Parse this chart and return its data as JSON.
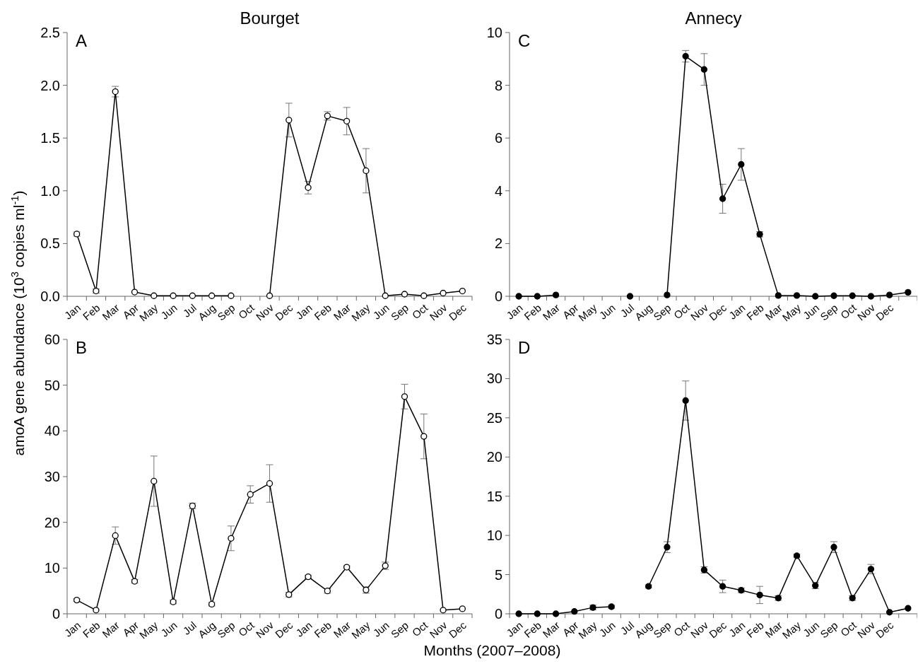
{
  "chart_data": [
    {
      "type": "line",
      "title": "Bourget",
      "ylabel": "amoA gene abundance (10$^{3}$ copies ml$^{-1}$)",
      "annotations": [
        "A"
      ],
      "categories": [
        "Jan",
        "Feb",
        "Mar",
        "Apr",
        "May",
        "Jun",
        "Jul",
        "Aug",
        "Sep",
        "Oct",
        "Nov",
        "Dec",
        "Jan",
        "Feb",
        "Mar",
        "May",
        "Jun",
        "Sep",
        "Oct",
        "Nov",
        "Dec"
      ],
      "ylim": [
        0,
        2.5
      ],
      "yticks": [
        {
          "value": 0,
          "label": "0.0"
        },
        {
          "value": 0.5,
          "label": "0.5"
        },
        {
          "value": 1,
          "label": "1.0"
        },
        {
          "value": 1.5,
          "label": "1.5"
        },
        {
          "value": 2,
          "label": "2.0"
        },
        {
          "value": 2.5,
          "label": "2.5"
        }
      ],
      "marker": "circle",
      "series": [
        {
          "color": "#ffffff",
          "values": [
            0.59,
            0.05,
            1.94,
            0.04,
            0.005,
            0.005,
            0.005,
            0.005,
            0.005,
            null,
            0.005,
            1.67,
            1.03,
            1.71,
            1.66,
            1.19,
            0.005,
            0.02,
            0.005,
            0.03,
            0.05
          ],
          "errors": [
            0.02,
            0.02,
            0.05,
            null,
            null,
            null,
            null,
            null,
            null,
            null,
            null,
            0.16,
            0.06,
            0.04,
            0.13,
            0.21,
            null,
            null,
            null,
            null,
            null
          ]
        }
      ]
    },
    {
      "type": "line",
      "title": "Annecy",
      "annotations": [
        "C"
      ],
      "categories": [
        "Jan",
        "Feb",
        "Mar",
        "Apr",
        "May",
        "Jun",
        "Jul",
        "Aug",
        "Sep",
        "Oct",
        "Nov",
        "Dec",
        "Jan",
        "Feb",
        "Mar",
        "May",
        "Jun",
        "Sep",
        "Oct",
        "Nov",
        "Dec",
        null
      ],
      "ylim": [
        0,
        10
      ],
      "yticks": [
        0,
        2,
        4,
        6,
        8,
        10
      ],
      "marker": "circle",
      "series": [
        {
          "color": "#000000",
          "values": [
            0,
            0,
            0.05,
            null,
            null,
            null,
            0,
            null,
            0.05,
            9.1,
            8.6,
            3.7,
            5.0,
            2.35,
            0.03,
            0.03,
            0,
            0.02,
            0.02,
            0,
            0.05,
            0.15
          ],
          "errors": [
            null,
            null,
            null,
            null,
            null,
            null,
            null,
            null,
            null,
            0.22,
            0.6,
            0.55,
            0.6,
            0.1,
            null,
            null,
            null,
            null,
            null,
            null,
            null,
            null
          ]
        }
      ]
    },
    {
      "type": "line",
      "annotations": [
        "B"
      ],
      "categories": [
        "Jan",
        "Feb",
        "Mar",
        "Apr",
        "May",
        "Jun",
        "Jul",
        "Aug",
        "Sep",
        "Oct",
        "Nov",
        "Dec",
        "Jan",
        "Feb",
        "Mar",
        "May",
        "Jun",
        "Sep",
        "Oct",
        "Nov",
        "Dec"
      ],
      "ylim": [
        0,
        60
      ],
      "yticks": [
        0,
        10,
        20,
        30,
        40,
        50,
        60
      ],
      "marker": "circle",
      "series": [
        {
          "color": "#ffffff",
          "values": [
            3.0,
            0.8,
            17.1,
            7.1,
            29.0,
            2.6,
            23.6,
            2.1,
            16.5,
            26.1,
            28.5,
            4.2,
            8.1,
            5.0,
            10.2,
            5.2,
            10.5,
            47.5,
            38.8,
            0.8,
            1.1
          ],
          "errors": [
            0.3,
            null,
            1.9,
            0.4,
            5.5,
            0.4,
            0.6,
            0.4,
            2.7,
            1.9,
            4.1,
            0.5,
            0.3,
            0.5,
            0.3,
            0.7,
            0.8,
            2.7,
            4.9,
            null,
            null
          ]
        }
      ]
    },
    {
      "type": "line",
      "xlabel": "Months (2007–2008)",
      "annotations": [
        "D"
      ],
      "categories": [
        "Jan",
        "Feb",
        "Mar",
        "Apr",
        "May",
        "Jun",
        "Jul",
        "Aug",
        "Sep",
        "Oct",
        "Nov",
        "Dec",
        "Jan",
        "Feb",
        "Mar",
        "May",
        "Jun",
        "Sep",
        "Oct",
        "Nov",
        "Dec",
        null
      ],
      "ylim": [
        0,
        35
      ],
      "yticks": [
        0,
        5,
        10,
        15,
        20,
        25,
        30,
        35
      ],
      "marker": "circle",
      "series": [
        {
          "color": "#000000",
          "values": [
            0,
            0,
            0,
            0.3,
            0.8,
            0.9,
            null,
            3.5,
            8.5,
            27.2,
            5.6,
            3.5,
            3.0,
            2.4,
            2.0,
            7.4,
            3.6,
            8.5,
            2.0,
            5.7,
            0.2,
            0.7
          ],
          "errors": [
            null,
            null,
            null,
            null,
            0.3,
            0.2,
            null,
            0.2,
            0.7,
            2.5,
            0.4,
            0.8,
            0.3,
            1.1,
            0.3,
            0.2,
            0.4,
            0.7,
            0.3,
            0.6,
            null,
            null
          ]
        }
      ]
    }
  ]
}
